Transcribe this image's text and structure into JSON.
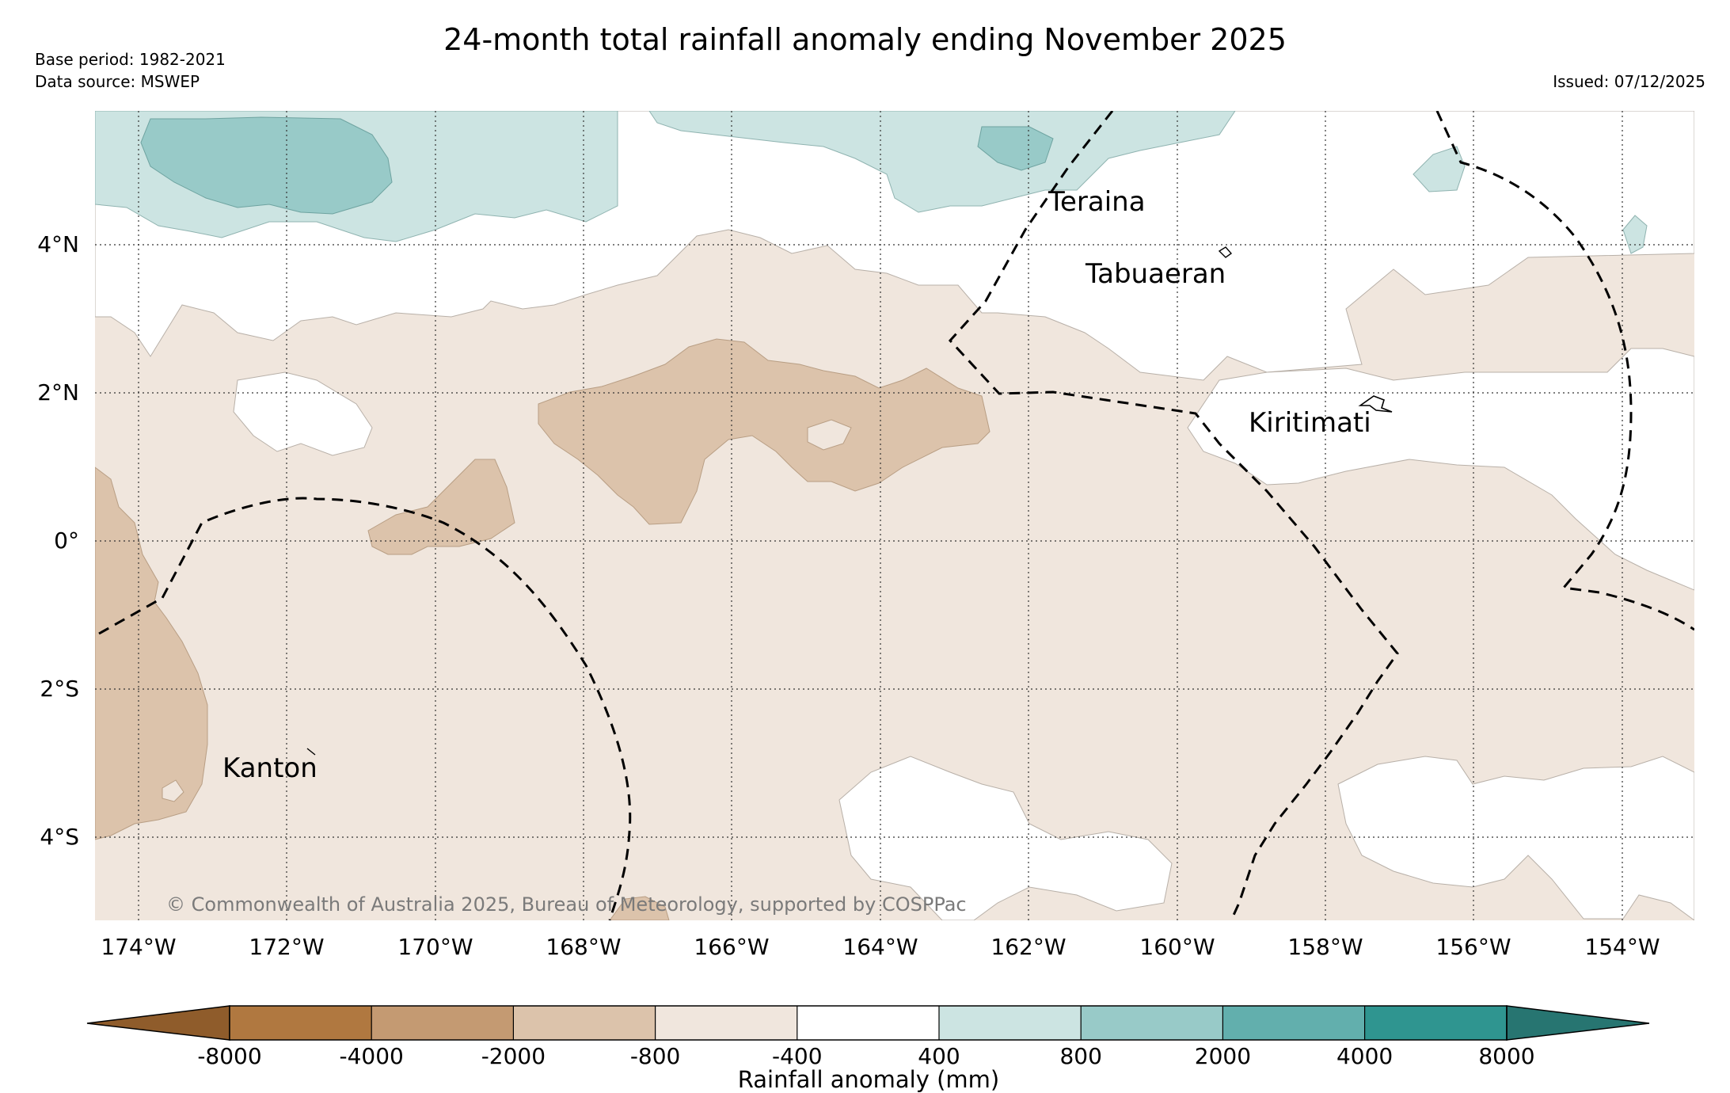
{
  "header": {
    "title": "24-month total rainfall anomaly ending November 2025",
    "base_period": "Base period: 1982-2021",
    "data_source": "Data source: MSWEP",
    "issued": "Issued: 07/12/2025"
  },
  "map": {
    "lon_labels": [
      "174°W",
      "172°W",
      "170°W",
      "168°W",
      "166°W",
      "164°W",
      "162°W",
      "160°W",
      "158°W",
      "156°W",
      "154°W"
    ],
    "lat_labels": [
      "4°N",
      "2°N",
      "0°",
      "2°S",
      "4°S"
    ],
    "places": {
      "teraina": "Teraina",
      "tabuaeran": "Tabuaeran",
      "kiritimati": "Kiritimati",
      "kanton": "Kanton"
    },
    "copyright": "© Commonwealth of Australia 2025, Bureau of Meteorology, supported by COSPPac"
  },
  "colorbar": {
    "title": "Rainfall anomaly (mm)",
    "tick_labels": [
      "-8000",
      "-4000",
      "-2000",
      "-800",
      "-400",
      "400",
      "800",
      "2000",
      "4000",
      "8000"
    ],
    "colors": {
      "below_min": "#8f5c2b",
      "c1": "#b07840",
      "c2": "#c49a72",
      "c3": "#dcc3ab",
      "c4": "#f0e6dd",
      "c5": "#ffffff",
      "c6": "#cce4e2",
      "c7": "#98cac8",
      "c8": "#62afad",
      "c9": "#2f9590",
      "above_max": "#277571"
    }
  }
}
